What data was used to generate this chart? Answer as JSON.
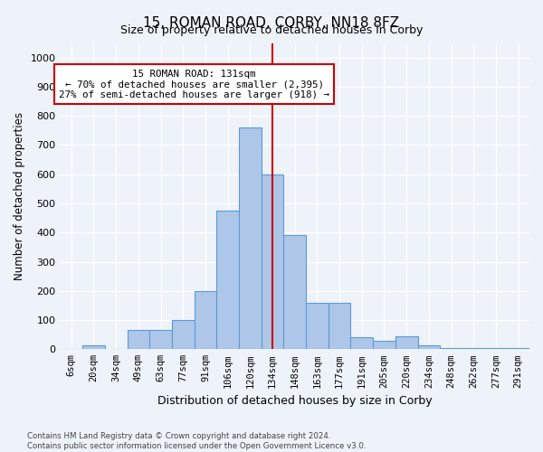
{
  "title": "15, ROMAN ROAD, CORBY, NN18 8FZ",
  "subtitle": "Size of property relative to detached houses in Corby",
  "xlabel": "Distribution of detached houses by size in Corby",
  "ylabel": "Number of detached properties",
  "categories": [
    "6sqm",
    "20sqm",
    "34sqm",
    "49sqm",
    "63sqm",
    "77sqm",
    "91sqm",
    "106sqm",
    "120sqm",
    "134sqm",
    "148sqm",
    "163sqm",
    "177sqm",
    "191sqm",
    "205sqm",
    "220sqm",
    "234sqm",
    "248sqm",
    "262sqm",
    "277sqm",
    "291sqm"
  ],
  "bar_heights": [
    0,
    13,
    0,
    65,
    65,
    100,
    200,
    475,
    760,
    600,
    390,
    160,
    160,
    42,
    28,
    44,
    12,
    5,
    5,
    3,
    3
  ],
  "bar_color": "#aec6e8",
  "bar_edgecolor": "#5b9bd5",
  "vline_color": "#cc0000",
  "annotation_title": "15 ROMAN ROAD: 131sqm",
  "annotation_line1": "← 70% of detached houses are smaller (2,395)",
  "annotation_line2": "27% of semi-detached houses are larger (918) →",
  "annotation_box_color": "#cc0000",
  "ylim": [
    0,
    1050
  ],
  "yticks": [
    0,
    100,
    200,
    300,
    400,
    500,
    600,
    700,
    800,
    900,
    1000
  ],
  "footer_line1": "Contains HM Land Registry data © Crown copyright and database right 2024.",
  "footer_line2": "Contains public sector information licensed under the Open Government Licence v3.0.",
  "bg_color": "#eef2f9",
  "plot_bg_color": "#eef2f9",
  "vline_pos": 9.0
}
